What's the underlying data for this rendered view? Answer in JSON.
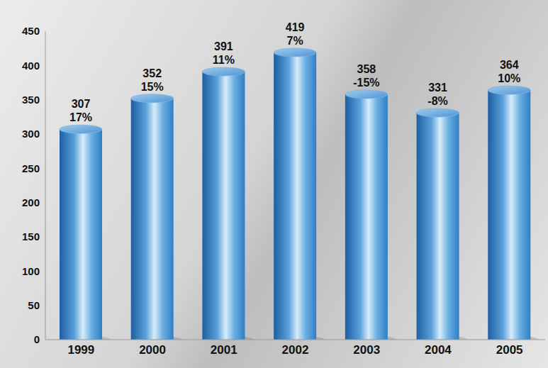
{
  "chart_data": {
    "type": "bar",
    "categories": [
      "1999",
      "2000",
      "2001",
      "2002",
      "2003",
      "2004",
      "2005"
    ],
    "values": [
      307,
      352,
      391,
      419,
      358,
      331,
      364
    ],
    "growth": [
      17,
      15,
      11,
      7,
      -15,
      -8,
      10
    ],
    "growth_labels": [
      "17%",
      "15%",
      "11%",
      "7%",
      "-15%",
      "-8%",
      "10%"
    ],
    "color": "#2f7fc4",
    "ylim": [
      0,
      450
    ],
    "yticks": [
      0,
      50,
      100,
      150,
      200,
      250,
      300,
      350,
      400,
      450
    ],
    "grid": false,
    "data_labels": true
  }
}
